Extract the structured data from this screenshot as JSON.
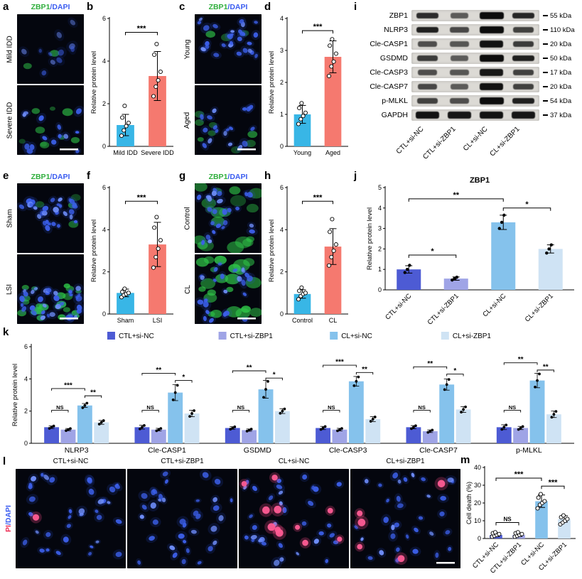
{
  "conditions": [
    "CTL+si-NC",
    "CTL+si-ZBP1",
    "CL+si-NC",
    "CL+si-ZBP1"
  ],
  "colors": {
    "blue_bar": "#38b6e6",
    "salmon_bar": "#f5796f",
    "ctl_sinc": "#4d5bd4",
    "ctl_sizbp1": "#9fa4e6",
    "cl_sinc": "#85c2ec",
    "cl_sizbp1": "#cfe3f4",
    "marker_green": "#2fae3c",
    "marker_blue": "#3a5cf0",
    "marker_red": "#ee2d55"
  },
  "panels": {
    "a": {
      "letter": "a",
      "marker": "ZBP1",
      "stain": "/DAPI",
      "rows": [
        "Mild IDD",
        "Severe IDD"
      ]
    },
    "b": {
      "letter": "b"
    },
    "c": {
      "letter": "c",
      "marker": "ZBP1",
      "stain": "/DAPI",
      "rows": [
        "Young",
        "Aged"
      ]
    },
    "d": {
      "letter": "d"
    },
    "e": {
      "letter": "e",
      "marker": "ZBP1",
      "stain": "/DAPI",
      "rows": [
        "Sham",
        "LSI"
      ]
    },
    "f": {
      "letter": "f"
    },
    "g": {
      "letter": "g",
      "marker": "ZBP1",
      "stain": "/DAPI",
      "rows": [
        "Control",
        "CL"
      ]
    },
    "h": {
      "letter": "h"
    },
    "i": {
      "letter": "i"
    },
    "j": {
      "letter": "j"
    },
    "k": {
      "letter": "k"
    },
    "l": {
      "letter": "l",
      "marker": "PI",
      "stain": "/DAPI",
      "columns": [
        "CTL+si-NC",
        "CTL+si-ZBP1",
        "CL+si-NC",
        "CL+si-ZBP1"
      ]
    },
    "m": {
      "letter": "m"
    }
  },
  "blot": {
    "rows": [
      {
        "name": "ZBP1",
        "kda": "55 kDa"
      },
      {
        "name": "NLRP3",
        "kda": "110 kDa"
      },
      {
        "name": "Cle-CASP1",
        "kda": "20 kDa"
      },
      {
        "name": "GSDMD",
        "kda": "50 kDa"
      },
      {
        "name": "Cle-CASP3",
        "kda": "17 kDa"
      },
      {
        "name": "Cle-CASP7",
        "kda": "20 kDa"
      },
      {
        "name": "p-MLKL",
        "kda": "54 kDa"
      },
      {
        "name": "GAPDH",
        "kda": "37 kDa"
      }
    ],
    "lanes": [
      "CTL+si-NC",
      "CTL+si-ZBP1",
      "CL+si-NC",
      "CL+si-ZBP1"
    ]
  },
  "chart_data": [
    {
      "id": "b",
      "type": "bar",
      "ylabel": "Relative protein level",
      "ylim": [
        0,
        6
      ],
      "yticks": [
        0,
        2,
        4,
        6
      ],
      "categories": [
        "Mild IDD",
        "Severe IDD"
      ],
      "values": [
        1.0,
        3.3
      ],
      "errors": [
        0.5,
        1.15
      ],
      "colors": [
        "#38b6e6",
        "#f5796f"
      ],
      "points": [
        [
          0.5,
          0.75,
          0.95,
          1.1,
          1.35,
          1.9
        ],
        [
          2.35,
          2.8,
          3.1,
          3.5,
          4.3,
          4.8
        ]
      ],
      "sigs": [
        {
          "a": 0,
          "b": 1,
          "label": "***",
          "y": 5.35
        }
      ],
      "dot": "open",
      "mL": 28,
      "mT": 14,
      "mB": 18
    },
    {
      "id": "d",
      "type": "bar",
      "ylabel": "Relative protein level",
      "ylim": [
        0,
        4
      ],
      "yticks": [
        0,
        1,
        2,
        3,
        4
      ],
      "categories": [
        "Young",
        "Aged"
      ],
      "values": [
        1.0,
        2.8
      ],
      "errors": [
        0.28,
        0.5
      ],
      "colors": [
        "#38b6e6",
        "#f5796f"
      ],
      "points": [
        [
          0.7,
          0.85,
          0.95,
          1.05,
          1.2,
          1.35
        ],
        [
          2.2,
          2.5,
          2.65,
          2.9,
          3.15,
          3.35
        ]
      ],
      "sigs": [
        {
          "a": 0,
          "b": 1,
          "label": "***",
          "y": 3.62
        }
      ],
      "dot": "open",
      "mL": 28,
      "mT": 14,
      "mB": 18
    },
    {
      "id": "f",
      "type": "bar",
      "ylabel": "Relative protein level",
      "ylim": [
        0,
        6
      ],
      "yticks": [
        0,
        2,
        4,
        6
      ],
      "categories": [
        "Sham",
        "LSI"
      ],
      "values": [
        1.0,
        3.3
      ],
      "errors": [
        0.18,
        1.05
      ],
      "colors": [
        "#38b6e6",
        "#f5796f"
      ],
      "points": [
        [
          0.8,
          0.9,
          0.95,
          1.0,
          1.05,
          1.2
        ],
        [
          2.2,
          2.7,
          3.1,
          3.5,
          4.1,
          4.6
        ]
      ],
      "sigs": [
        {
          "a": 0,
          "b": 1,
          "label": "***",
          "y": 5.35
        }
      ],
      "dot": "open",
      "mL": 28,
      "mT": 14,
      "mB": 18
    },
    {
      "id": "h",
      "type": "bar",
      "ylabel": "Relative protein level",
      "ylim": [
        0,
        6
      ],
      "yticks": [
        0,
        2,
        4,
        6
      ],
      "categories": [
        "Control",
        "CL"
      ],
      "values": [
        0.95,
        3.2
      ],
      "errors": [
        0.2,
        0.85
      ],
      "colors": [
        "#38b6e6",
        "#f5796f"
      ],
      "points": [
        [
          0.7,
          0.85,
          0.95,
          1.0,
          1.1,
          1.25
        ],
        [
          2.3,
          2.7,
          3.0,
          3.3,
          3.9,
          4.5
        ]
      ],
      "sigs": [
        {
          "a": 0,
          "b": 1,
          "label": "***",
          "y": 5.35
        }
      ],
      "dot": "open",
      "mL": 28,
      "mT": 14,
      "mB": 18
    },
    {
      "id": "j",
      "type": "bar",
      "title": "ZBP1",
      "ylabel": "Relative protein level",
      "ylim": [
        0,
        5
      ],
      "yticks": [
        0,
        1,
        2,
        3,
        4,
        5
      ],
      "categories": [
        "CTL+si-NC",
        "CTL+si-ZBP1",
        "CL+si-NC",
        "CL+si-ZBP1"
      ],
      "values": [
        1.0,
        0.55,
        3.3,
        2.0
      ],
      "errors": [
        0.18,
        0.08,
        0.35,
        0.2
      ],
      "colors": [
        "#4d5bd4",
        "#9fa4e6",
        "#85c2ec",
        "#cfe3f4"
      ],
      "points": [
        [
          0.85,
          1.0,
          1.2
        ],
        [
          0.48,
          0.55,
          0.62
        ],
        [
          3.0,
          3.3,
          3.65
        ],
        [
          1.8,
          2.0,
          2.2
        ]
      ],
      "sigs": [
        {
          "a": 0,
          "b": 1,
          "label": "*",
          "y": 1.7
        },
        {
          "a": 0,
          "b": 2,
          "label": "**",
          "y": 4.45
        },
        {
          "a": 2,
          "b": 3,
          "label": "*",
          "y": 4.0
        }
      ],
      "dot": "filled",
      "rotate": 45,
      "mL": 30,
      "mT": 18,
      "mB": 56
    },
    {
      "id": "k",
      "type": "grouped-bar",
      "ylabel": "Relative protein level",
      "ylim": [
        0,
        6
      ],
      "yticks": [
        0,
        2,
        4,
        6
      ],
      "categories": [
        "NLRP3",
        "Cle-CASP1",
        "GSDMD",
        "Cle-CASP3",
        "Cle-CASP7",
        "p-MLKL"
      ],
      "series": [
        {
          "name": "CTL+si-NC",
          "color": "#4d5bd4",
          "values": [
            1.0,
            1.0,
            0.95,
            0.95,
            1.0,
            1.0
          ],
          "errors": [
            0.08,
            0.12,
            0.08,
            0.1,
            0.1,
            0.15
          ]
        },
        {
          "name": "CTL+si-ZBP1",
          "color": "#9fa4e6",
          "values": [
            0.85,
            0.85,
            0.82,
            0.85,
            0.75,
            0.95
          ],
          "errors": [
            0.07,
            0.08,
            0.07,
            0.08,
            0.08,
            0.1
          ]
        },
        {
          "name": "CL+si-NC",
          "color": "#85c2ec",
          "values": [
            2.35,
            3.15,
            3.35,
            3.85,
            3.65,
            3.9
          ],
          "errors": [
            0.12,
            0.5,
            0.55,
            0.3,
            0.35,
            0.45
          ]
        },
        {
          "name": "CL+si-ZBP1",
          "color": "#cfe3f4",
          "values": [
            1.3,
            1.85,
            2.0,
            1.5,
            2.1,
            1.8
          ],
          "errors": [
            0.12,
            0.2,
            0.15,
            0.15,
            0.18,
            0.2
          ]
        }
      ],
      "sigs": [
        {
          "g": 0,
          "a": 0,
          "b": 1,
          "label": "NS",
          "y": 2.05
        },
        {
          "g": 0,
          "a": 0,
          "b": 2,
          "label": "***",
          "y": 3.4
        },
        {
          "g": 0,
          "a": 2,
          "b": 3,
          "label": "**",
          "y": 2.95
        },
        {
          "g": 1,
          "a": 0,
          "b": 1,
          "label": "NS",
          "y": 2.05
        },
        {
          "g": 1,
          "a": 0,
          "b": 2,
          "label": "**",
          "y": 4.35
        },
        {
          "g": 1,
          "a": 2,
          "b": 3,
          "label": "*",
          "y": 3.9
        },
        {
          "g": 2,
          "a": 0,
          "b": 1,
          "label": "NS",
          "y": 2.05
        },
        {
          "g": 2,
          "a": 0,
          "b": 2,
          "label": "**",
          "y": 4.5
        },
        {
          "g": 2,
          "a": 2,
          "b": 3,
          "label": "*",
          "y": 4.05
        },
        {
          "g": 3,
          "a": 0,
          "b": 1,
          "label": "NS",
          "y": 2.05
        },
        {
          "g": 3,
          "a": 0,
          "b": 2,
          "label": "***",
          "y": 4.85
        },
        {
          "g": 3,
          "a": 2,
          "b": 3,
          "label": "**",
          "y": 4.4
        },
        {
          "g": 4,
          "a": 0,
          "b": 1,
          "label": "NS",
          "y": 2.05
        },
        {
          "g": 4,
          "a": 0,
          "b": 2,
          "label": "**",
          "y": 4.75
        },
        {
          "g": 4,
          "a": 2,
          "b": 3,
          "label": "*",
          "y": 4.3
        },
        {
          "g": 5,
          "a": 0,
          "b": 1,
          "label": "NS",
          "y": 2.05
        },
        {
          "g": 5,
          "a": 0,
          "b": 2,
          "label": "**",
          "y": 5.0
        },
        {
          "g": 5,
          "a": 2,
          "b": 3,
          "label": "**",
          "y": 4.55
        }
      ],
      "mL": 34,
      "mT": 24,
      "mB": 18
    },
    {
      "id": "m",
      "type": "bar",
      "ylabel": "Cell death (%)",
      "ylim": [
        0,
        40
      ],
      "yticks": [
        0,
        10,
        20,
        30,
        40
      ],
      "categories": [
        "CTL+si-NC",
        "CTL+si-ZBP1",
        "CL+si-NC",
        "CL+si-ZBP1"
      ],
      "values": [
        2,
        2,
        21,
        11
      ],
      "errors": [
        0.8,
        0.8,
        3.5,
        1.8
      ],
      "colors": [
        "#4d5bd4",
        "#9fa4e6",
        "#85c2ec",
        "#cfe3f4"
      ],
      "points": [
        [
          1,
          1.5,
          2,
          2.5,
          3,
          3.5
        ],
        [
          1,
          1.5,
          2,
          2.5,
          3,
          3.5
        ],
        [
          17,
          19,
          20,
          21,
          23,
          25
        ],
        [
          8,
          9,
          10,
          11,
          12,
          13
        ]
      ],
      "sigs": [
        {
          "a": 0,
          "b": 1,
          "label": "NS",
          "y": 9
        },
        {
          "a": 0,
          "b": 2,
          "label": "***",
          "y": 34
        },
        {
          "a": 2,
          "b": 3,
          "label": "***",
          "y": 29.5
        }
      ],
      "dot": "open",
      "rotate": 45,
      "mL": 30,
      "mT": 12,
      "mB": 56
    }
  ]
}
